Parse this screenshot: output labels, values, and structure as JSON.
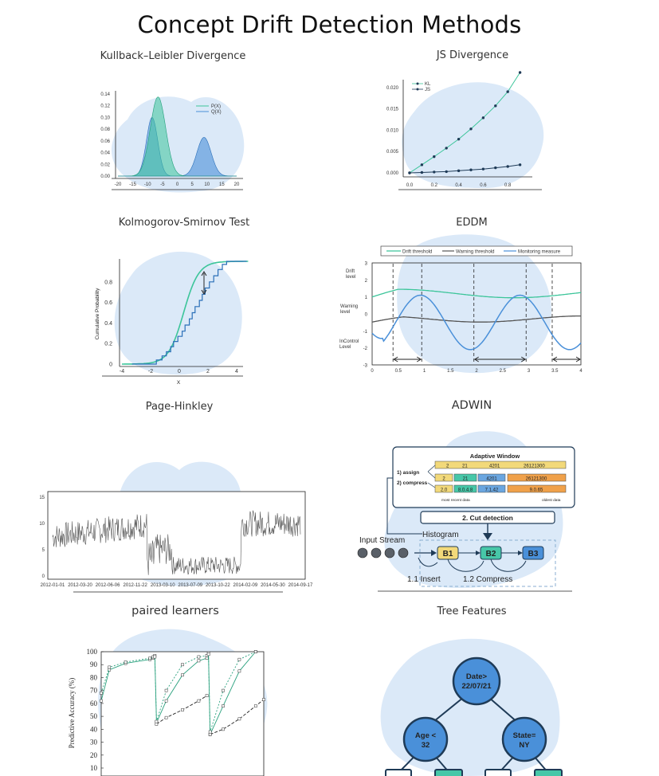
{
  "page": {
    "title": "Concept Drift Detection Methods"
  },
  "panels": {
    "kl": {
      "title": "Kullback–Leibler Divergence"
    },
    "js": {
      "title": "JS Divergence"
    },
    "ks": {
      "title": "Kolmogorov-Smirnov Test"
    },
    "eddm": {
      "title": "EDDM"
    },
    "ph": {
      "title": "Page-Hinkley"
    },
    "adwin": {
      "title": "ADWIN"
    },
    "paired": {
      "title": "paired learners"
    },
    "tree": {
      "title": "Tree Features"
    }
  },
  "colors": {
    "blob": "#dbe9f8",
    "green": "#3cc59a",
    "blue": "#4a90d9",
    "navy": "#1f3b57"
  },
  "chart_data": [
    {
      "id": "kl",
      "type": "area",
      "x_ticks": [
        "-20",
        "-15",
        "-10",
        "-5",
        "0",
        "5",
        "10",
        "15",
        "20"
      ],
      "y_ticks": [
        "0.00",
        "0.02",
        "0.04",
        "0.06",
        "0.08",
        "0.10",
        "0.12",
        "0.14"
      ],
      "xlim": [
        -20,
        20
      ],
      "ylim": [
        0,
        0.14
      ],
      "series": [
        {
          "name": "P(X)",
          "mean": -6.5,
          "sd": 2.6,
          "peak": 0.135
        },
        {
          "name": "Q(X)",
          "mean": -8.5,
          "sd": 1.9,
          "peak": 0.1
        },
        {
          "name": "",
          "mean": 9,
          "sd": 2.4,
          "peak": 0.066
        }
      ]
    },
    {
      "id": "js",
      "type": "line",
      "x_ticks": [
        "0.0",
        "0.2",
        "0.4",
        "0.6",
        "0.8"
      ],
      "y_ticks": [
        "0.000",
        "0.005",
        "0.010",
        "0.015",
        "0.020"
      ],
      "xlim": [
        0,
        1
      ],
      "ylim": [
        0,
        0.0235
      ],
      "series": [
        {
          "name": "KL",
          "x": [
            0,
            0.1,
            0.2,
            0.3,
            0.4,
            0.5,
            0.6,
            0.7,
            0.8,
            0.9
          ],
          "y": [
            0,
            0.0019,
            0.0038,
            0.0058,
            0.0079,
            0.0103,
            0.0129,
            0.0157,
            0.019,
            0.0235
          ]
        },
        {
          "name": "JS",
          "x": [
            0,
            0.1,
            0.2,
            0.3,
            0.4,
            0.5,
            0.6,
            0.7,
            0.8,
            0.9
          ],
          "y": [
            0,
            0.0001,
            0.0002,
            0.0003,
            0.0005,
            0.0007,
            0.0009,
            0.0012,
            0.0015,
            0.0019
          ]
        }
      ]
    },
    {
      "id": "ks",
      "type": "line",
      "ylabel": "Cumulative Probability",
      "xlabel": "X",
      "x_ticks": [
        "-4",
        "-2",
        "0",
        "2",
        "4"
      ],
      "y_ticks": [
        "0",
        "0.2",
        "0.4",
        "0.6",
        "0.8"
      ],
      "xlim": [
        -4,
        4
      ],
      "ylim": [
        0,
        1
      ]
    },
    {
      "id": "eddm",
      "type": "line",
      "legend": [
        "Drift threshold",
        "Warning threshold",
        "Monitoring measure"
      ],
      "level_labels": {
        "drift_1": "Drift",
        "drift_2": "level",
        "warn_1": "Warning",
        "warn_2": "level",
        "inc_1": "InControl",
        "inc_2": "Level"
      },
      "y_ticks": [
        "3",
        "2",
        "1",
        "0",
        "-1",
        "-2",
        "-3"
      ],
      "x_ticks": [
        "0",
        "0.5",
        "1",
        "1.5",
        "2",
        "2.5",
        "3",
        "3.5",
        "4"
      ],
      "xlim": [
        0,
        4
      ],
      "ylim": [
        -3,
        3
      ]
    },
    {
      "id": "ph",
      "type": "line",
      "y_ticks": [
        "15",
        "10",
        "5",
        "0"
      ],
      "x_ticks": [
        "2012-01-01",
        "2012-03-20",
        "2012-06-06",
        "2012-11-22",
        "2013-03-10",
        "2013-07-09",
        "2013-10-22",
        "2014-02-09",
        "2014-05-30",
        "2014-09-17"
      ],
      "ylim": [
        0,
        15
      ]
    },
    {
      "id": "paired",
      "type": "line",
      "ylabel": "Predictive Accuracy (%)",
      "y_ticks": [
        "100",
        "90",
        "80",
        "70",
        "60",
        "50",
        "40",
        "30",
        "20",
        "10"
      ],
      "ylim": [
        10,
        100
      ]
    }
  ],
  "adwin": {
    "window_title": "Adaptive Window",
    "assign_label": "1) assign",
    "compress_label": "2) compress",
    "row1": [
      "2",
      "21",
      "4201",
      "26121300"
    ],
    "row2": [
      "2",
      "21",
      "4201",
      "26121300"
    ],
    "row3": [
      "2.0",
      "8.0.4.8",
      "7.1.42",
      "9.0.65"
    ],
    "most_recent": "most  recent data",
    "oldest": "oldest data",
    "cut_detection": "2.  Cut detection",
    "histogram": "Histogram",
    "input_stream": "Input Stream",
    "buckets": [
      "B1",
      "B2",
      "B3"
    ],
    "insert": "1.1 Insert",
    "compress": "1.2 Compress"
  },
  "tree": {
    "root": [
      "Date>",
      "22/07/21"
    ],
    "left": [
      "Age <",
      "32"
    ],
    "right": [
      "State=",
      "NY"
    ]
  }
}
